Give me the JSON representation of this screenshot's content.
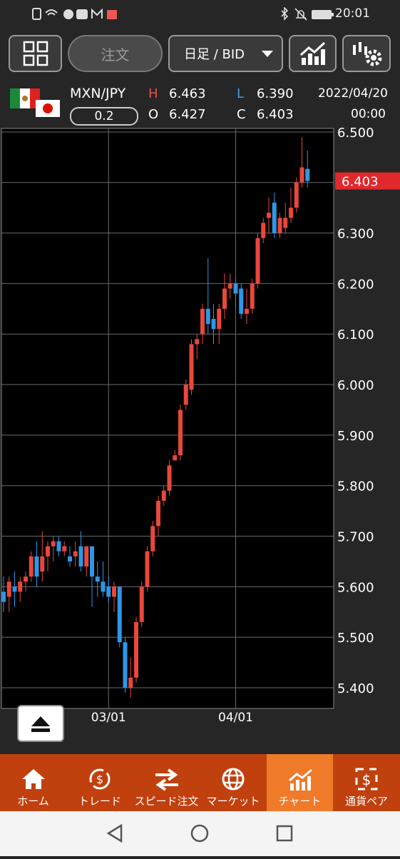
{
  "status_bar": {
    "time": "20:01"
  },
  "toolbar": {
    "order": "注文",
    "period": "日足 / BID"
  },
  "quote": {
    "symbol": "MXN/JPY",
    "spread": "0.2",
    "high_label": "H",
    "high": "6.463",
    "open_label": "O",
    "open": "6.427",
    "low_label": "L",
    "low": "6.390",
    "close_label": "C",
    "close": "6.403",
    "date": "2022/04/20",
    "time": "00:00"
  },
  "chart_data": {
    "type": "candlestick",
    "categories": [
      null,
      null,
      null,
      null,
      null,
      null,
      null,
      null,
      null,
      null,
      null,
      null,
      null,
      null,
      null,
      null,
      null,
      null,
      null,
      "03/01",
      null,
      null,
      null,
      null,
      null,
      null,
      null,
      null,
      null,
      null,
      null,
      null,
      null,
      null,
      null,
      null,
      null,
      null,
      null,
      null,
      null,
      null,
      "04/01",
      null,
      null,
      null,
      null,
      null,
      null,
      null,
      null,
      null,
      null,
      null,
      null,
      null
    ],
    "open": [
      5.59,
      5.58,
      5.6,
      5.59,
      5.61,
      5.62,
      5.66,
      5.63,
      5.66,
      5.68,
      5.69,
      5.67,
      5.66,
      5.66,
      5.68,
      5.64,
      5.68,
      5.62,
      5.61,
      5.6,
      5.58,
      5.6,
      5.49,
      5.4,
      5.42,
      5.53,
      5.6,
      5.67,
      5.72,
      5.77,
      5.79,
      5.85,
      5.86,
      5.96,
      5.99,
      6.08,
      6.1,
      6.15,
      6.13,
      6.11,
      6.15,
      6.19,
      6.2,
      6.19,
      6.14,
      6.15,
      6.2,
      6.29,
      6.33,
      6.36,
      6.3,
      6.31,
      6.33,
      6.35,
      6.4,
      6.427
    ],
    "high": [
      5.62,
      5.62,
      5.63,
      5.62,
      5.63,
      5.67,
      5.69,
      5.71,
      5.69,
      5.7,
      5.7,
      5.69,
      5.68,
      5.69,
      5.71,
      5.68,
      5.68,
      5.65,
      5.65,
      5.62,
      5.61,
      5.6,
      5.5,
      5.46,
      5.54,
      5.61,
      5.68,
      5.73,
      5.78,
      5.8,
      5.85,
      5.87,
      5.96,
      6.01,
      6.09,
      6.1,
      6.16,
      6.25,
      6.16,
      6.16,
      6.22,
      6.22,
      6.21,
      6.2,
      6.19,
      6.21,
      6.3,
      6.33,
      6.37,
      6.38,
      6.34,
      6.36,
      6.39,
      6.41,
      6.49,
      6.463
    ],
    "low": [
      5.55,
      5.55,
      5.56,
      5.57,
      5.59,
      5.61,
      5.6,
      5.61,
      5.63,
      5.65,
      5.66,
      5.66,
      5.64,
      5.64,
      5.63,
      5.62,
      5.56,
      5.58,
      5.58,
      5.57,
      5.55,
      5.48,
      5.39,
      5.38,
      5.41,
      5.52,
      5.59,
      5.66,
      5.7,
      5.76,
      5.78,
      5.85,
      5.85,
      5.95,
      5.98,
      6.05,
      6.08,
      6.1,
      6.08,
      6.08,
      6.13,
      6.17,
      6.15,
      6.13,
      6.12,
      6.14,
      6.19,
      6.28,
      6.3,
      6.29,
      6.29,
      6.3,
      6.32,
      6.34,
      6.39,
      6.39
    ],
    "close": [
      5.57,
      5.61,
      5.59,
      5.61,
      5.62,
      5.66,
      5.62,
      5.66,
      5.68,
      5.69,
      5.67,
      5.68,
      5.65,
      5.67,
      5.64,
      5.68,
      5.62,
      5.61,
      5.59,
      5.58,
      5.6,
      5.49,
      5.4,
      5.42,
      5.53,
      5.6,
      5.67,
      5.72,
      5.77,
      5.79,
      5.84,
      5.86,
      5.95,
      6.0,
      6.08,
      6.09,
      6.15,
      6.12,
      6.11,
      6.15,
      6.19,
      6.2,
      6.18,
      6.14,
      6.15,
      6.2,
      6.29,
      6.32,
      6.34,
      6.3,
      6.33,
      6.33,
      6.35,
      6.4,
      6.43,
      6.403
    ],
    "up_color": "#e8473b",
    "down_color": "#2e97e6",
    "ylim": [
      5.359,
      6.507
    ],
    "yticks": [
      {
        "value": 5.4,
        "label": "5.400"
      },
      {
        "value": 5.5,
        "label": "5.500"
      },
      {
        "value": 5.6,
        "label": "5.600"
      },
      {
        "value": 5.7,
        "label": "5.700"
      },
      {
        "value": 5.8,
        "label": "5.800"
      },
      {
        "value": 5.9,
        "label": "5.900"
      },
      {
        "value": 6.0,
        "label": "6.000"
      },
      {
        "value": 6.1,
        "label": "6.100"
      },
      {
        "value": 6.2,
        "label": "6.200"
      },
      {
        "value": 6.3,
        "label": "6.300"
      },
      {
        "value": 6.4,
        "label": "6.400"
      },
      {
        "value": 6.5,
        "label": "6.500"
      }
    ],
    "price_tag": {
      "value": 6.403,
      "label": "6.403"
    },
    "grid": true
  },
  "nav": [
    "ホーム",
    "トレード",
    "スピード注文",
    "マーケット",
    "チャート",
    "通貨ペア"
  ]
}
